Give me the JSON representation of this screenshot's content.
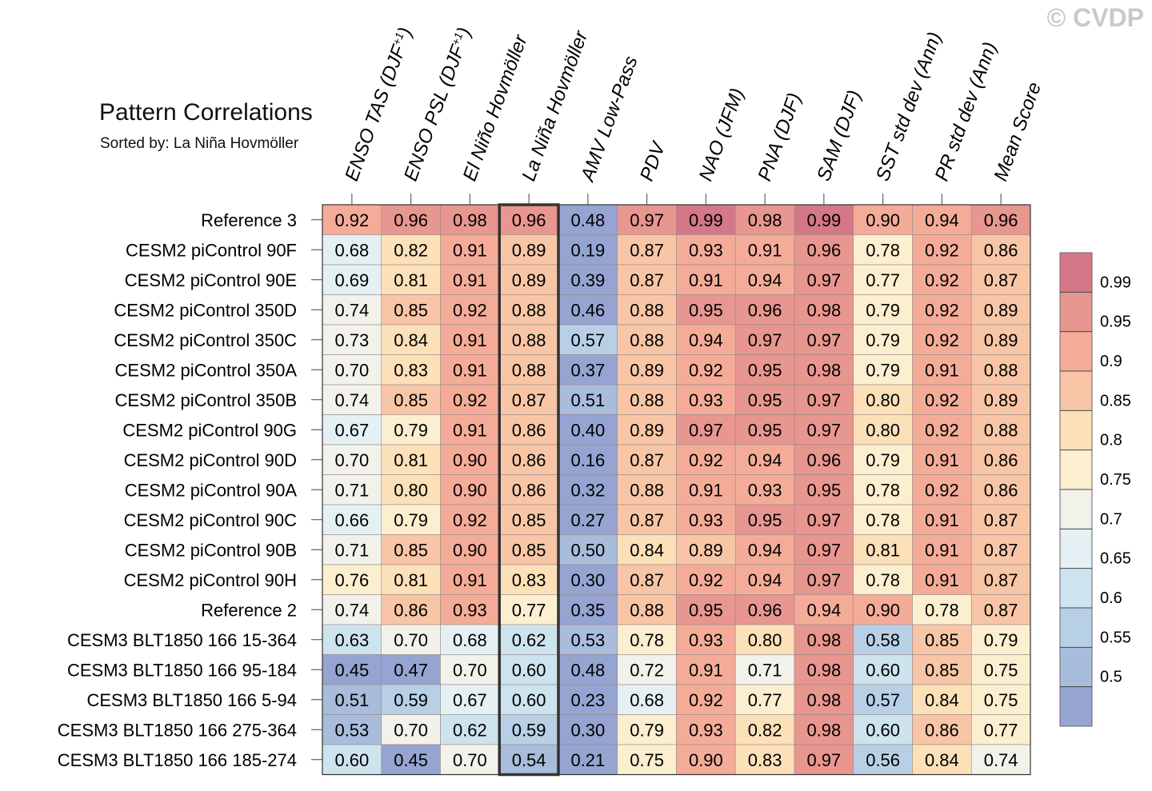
{
  "watermark": "© CVDP",
  "chart_data": {
    "type": "heatmap",
    "title": "Pattern Correlations",
    "subtitle": "Sorted by: La Niña Hovmöller",
    "columns": [
      "ENSO TAS (DJF+1)",
      "ENSO PSL (DJF+1)",
      "El Niño Hovmöller",
      "La Niña Hovmöller",
      "AMV Low-Pass",
      "PDV",
      "NAO (JFM)",
      "PNA (DJF)",
      "SAM (DJF)",
      "SST std dev (Ann)",
      "PR std dev (Ann)",
      "Mean Score"
    ],
    "highlighted_column": "La Niña Hovmöller",
    "rows": [
      {
        "label": "Reference 3",
        "values": [
          "0.92",
          "0.96",
          "0.98",
          "0.96",
          "0.48",
          "0.97",
          "0.99",
          "0.98",
          "0.99",
          "0.90",
          "0.94",
          "0.96"
        ]
      },
      {
        "label": "CESM2 piControl 90F",
        "values": [
          "0.68",
          "0.82",
          "0.91",
          "0.89",
          "0.19",
          "0.87",
          "0.93",
          "0.91",
          "0.96",
          "0.78",
          "0.92",
          "0.86"
        ]
      },
      {
        "label": "CESM2 piControl 90E",
        "values": [
          "0.69",
          "0.81",
          "0.91",
          "0.89",
          "0.39",
          "0.87",
          "0.91",
          "0.94",
          "0.97",
          "0.77",
          "0.92",
          "0.87"
        ]
      },
      {
        "label": "CESM2 piControl 350D",
        "values": [
          "0.74",
          "0.85",
          "0.92",
          "0.88",
          "0.46",
          "0.88",
          "0.95",
          "0.96",
          "0.98",
          "0.79",
          "0.92",
          "0.89"
        ]
      },
      {
        "label": "CESM2 piControl 350C",
        "values": [
          "0.73",
          "0.84",
          "0.91",
          "0.88",
          "0.57",
          "0.88",
          "0.94",
          "0.97",
          "0.97",
          "0.79",
          "0.92",
          "0.89"
        ]
      },
      {
        "label": "CESM2 piControl 350A",
        "values": [
          "0.70",
          "0.83",
          "0.91",
          "0.88",
          "0.37",
          "0.89",
          "0.92",
          "0.95",
          "0.98",
          "0.79",
          "0.91",
          "0.88"
        ]
      },
      {
        "label": "CESM2 piControl 350B",
        "values": [
          "0.74",
          "0.85",
          "0.92",
          "0.87",
          "0.51",
          "0.88",
          "0.93",
          "0.95",
          "0.97",
          "0.80",
          "0.92",
          "0.89"
        ]
      },
      {
        "label": "CESM2 piControl 90G",
        "values": [
          "0.67",
          "0.79",
          "0.91",
          "0.86",
          "0.40",
          "0.89",
          "0.97",
          "0.95",
          "0.97",
          "0.80",
          "0.92",
          "0.88"
        ]
      },
      {
        "label": "CESM2 piControl 90D",
        "values": [
          "0.70",
          "0.81",
          "0.90",
          "0.86",
          "0.16",
          "0.87",
          "0.92",
          "0.94",
          "0.96",
          "0.79",
          "0.91",
          "0.86"
        ]
      },
      {
        "label": "CESM2 piControl 90A",
        "values": [
          "0.71",
          "0.80",
          "0.90",
          "0.86",
          "0.32",
          "0.88",
          "0.91",
          "0.93",
          "0.95",
          "0.78",
          "0.92",
          "0.86"
        ]
      },
      {
        "label": "CESM2 piControl 90C",
        "values": [
          "0.66",
          "0.79",
          "0.92",
          "0.85",
          "0.27",
          "0.87",
          "0.93",
          "0.95",
          "0.97",
          "0.78",
          "0.91",
          "0.87"
        ]
      },
      {
        "label": "CESM2 piControl 90B",
        "values": [
          "0.71",
          "0.85",
          "0.90",
          "0.85",
          "0.50",
          "0.84",
          "0.89",
          "0.94",
          "0.97",
          "0.81",
          "0.91",
          "0.87"
        ]
      },
      {
        "label": "CESM2 piControl 90H",
        "values": [
          "0.76",
          "0.81",
          "0.91",
          "0.83",
          "0.30",
          "0.87",
          "0.92",
          "0.94",
          "0.97",
          "0.78",
          "0.91",
          "0.87"
        ]
      },
      {
        "label": "Reference 2",
        "values": [
          "0.74",
          "0.86",
          "0.93",
          "0.77",
          "0.35",
          "0.88",
          "0.95",
          "0.96",
          "0.94",
          "0.90",
          "0.78",
          "0.87"
        ]
      },
      {
        "label": "CESM3 BLT1850 166 15-364",
        "values": [
          "0.63",
          "0.70",
          "0.68",
          "0.62",
          "0.53",
          "0.78",
          "0.93",
          "0.80",
          "0.98",
          "0.58",
          "0.85",
          "0.79"
        ]
      },
      {
        "label": "CESM3 BLT1850 166 95-184",
        "values": [
          "0.45",
          "0.47",
          "0.70",
          "0.60",
          "0.48",
          "0.72",
          "0.91",
          "0.71",
          "0.98",
          "0.60",
          "0.85",
          "0.75"
        ]
      },
      {
        "label": "CESM3 BLT1850 166 5-94",
        "values": [
          "0.51",
          "0.59",
          "0.67",
          "0.60",
          "0.23",
          "0.68",
          "0.92",
          "0.77",
          "0.98",
          "0.57",
          "0.84",
          "0.75"
        ]
      },
      {
        "label": "CESM3 BLT1850 166 275-364",
        "values": [
          "0.53",
          "0.70",
          "0.62",
          "0.59",
          "0.30",
          "0.79",
          "0.93",
          "0.82",
          "0.98",
          "0.60",
          "0.86",
          "0.77"
        ]
      },
      {
        "label": "CESM3 BLT1850 166 185-274",
        "values": [
          "0.60",
          "0.45",
          "0.70",
          "0.54",
          "0.21",
          "0.75",
          "0.90",
          "0.83",
          "0.97",
          "0.56",
          "0.84",
          "0.74"
        ]
      }
    ],
    "colorbar": {
      "levels": [
        "0.99",
        "0.95",
        "0.9",
        "0.85",
        "0.8",
        "0.75",
        "0.7",
        "0.65",
        "0.6",
        "0.55",
        "0.5"
      ],
      "colors": [
        "#d47888",
        "#e89690",
        "#f4ac98",
        "#f8c6a6",
        "#fce0b8",
        "#fbefd0",
        "#f2f2ea",
        "#e4f0f4",
        "#cde3ee",
        "#b8d0e6",
        "#a8bcdc",
        "#96a4d2"
      ]
    }
  }
}
